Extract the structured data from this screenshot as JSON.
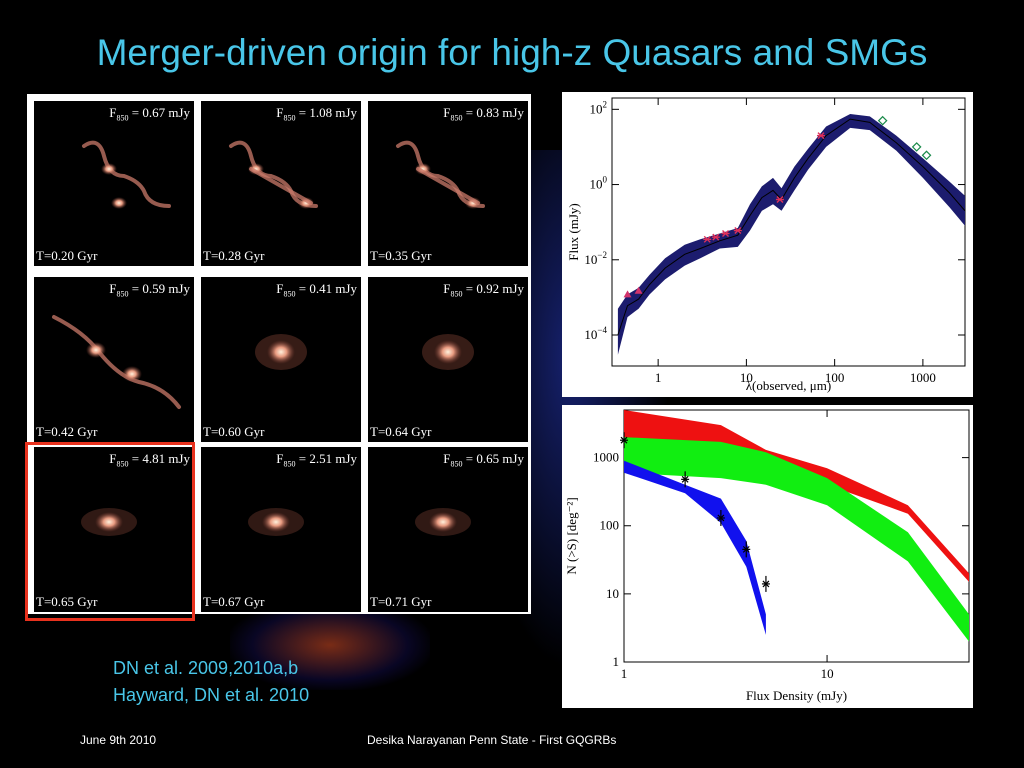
{
  "slide": {
    "title": "Merger-driven origin for high-z Quasars and SMGs",
    "references": [
      "DN et al. 2009,2010a,b",
      "Hayward, DN et al. 2010"
    ],
    "footer": {
      "date": "June 9th 2010",
      "center": "Desika Narayanan   Penn State - First GQGRBs"
    }
  },
  "simulation_panels": [
    {
      "flux": "= 0.67 mJy",
      "time": "T=0.20  Gyr",
      "stage": "separated"
    },
    {
      "flux": "= 1.08 mJy",
      "time": "T=0.28  Gyr",
      "stage": "separated"
    },
    {
      "flux": "= 0.83 mJy",
      "time": "T=0.35  Gyr",
      "stage": "separated"
    },
    {
      "flux": "= 0.59 mJy",
      "time": "T=0.42  Gyr",
      "stage": "approach"
    },
    {
      "flux": "= 0.41 mJy",
      "time": "T=0.60  Gyr",
      "stage": "merging"
    },
    {
      "flux": "= 0.92 mJy",
      "time": "T=0.64  Gyr",
      "stage": "merging"
    },
    {
      "flux": "= 4.81 mJy",
      "time": "T=0.65  Gyr",
      "stage": "coalesced"
    },
    {
      "flux": "= 2.51 mJy",
      "time": "T=0.67  Gyr",
      "stage": "coalesced"
    },
    {
      "flux": "= 0.65 mJy",
      "time": "T=0.71  Gyr",
      "stage": "coalesced"
    }
  ],
  "flux_symbol": "F",
  "flux_subscript": "850",
  "highlighted_panel": 6,
  "colors": {
    "title": "#49c6e8",
    "highlight": "#e8321e",
    "sed_band": "#1c1c6e",
    "red_band": "#ee1111",
    "green_band": "#11ee11",
    "blue_band": "#1111ee"
  },
  "chart_data": [
    {
      "type": "area",
      "xlabel": "λ(observed, μm)",
      "ylabel": "Flux (mJy)",
      "xscale": "log",
      "yscale": "log",
      "xlim": [
        0.3,
        3000
      ],
      "ylim": [
        1.5e-05,
        200
      ],
      "xticks": [
        {
          "v": 1,
          "label": "1"
        },
        {
          "v": 10,
          "label": "10"
        },
        {
          "v": 100,
          "label": "100"
        },
        {
          "v": 1000,
          "label": "1000"
        }
      ],
      "yticks": [
        {
          "v": 0.0001,
          "base": "10",
          "exp": "−4"
        },
        {
          "v": 0.01,
          "base": "10",
          "exp": "−2"
        },
        {
          "v": 1,
          "base": "10",
          "exp": "0"
        },
        {
          "v": 100,
          "base": "10",
          "exp": "2"
        }
      ],
      "model_band": [
        {
          "x": 0.35,
          "lo": 3e-05,
          "hi": 0.0005,
          "mid": 0.0001
        },
        {
          "x": 0.45,
          "lo": 0.0003,
          "hi": 0.0012,
          "mid": 0.0006
        },
        {
          "x": 0.6,
          "lo": 0.0005,
          "hi": 0.0018,
          "mid": 0.0009
        },
        {
          "x": 0.8,
          "lo": 0.0012,
          "hi": 0.004,
          "mid": 0.0022
        },
        {
          "x": 1.2,
          "lo": 0.003,
          "hi": 0.011,
          "mid": 0.006
        },
        {
          "x": 2,
          "lo": 0.007,
          "hi": 0.025,
          "mid": 0.014
        },
        {
          "x": 3,
          "lo": 0.011,
          "hi": 0.035,
          "mid": 0.02
        },
        {
          "x": 5,
          "lo": 0.02,
          "hi": 0.05,
          "mid": 0.032
        },
        {
          "x": 8,
          "lo": 0.022,
          "hi": 0.07,
          "mid": 0.045
        },
        {
          "x": 11,
          "lo": 0.06,
          "hi": 0.3,
          "mid": 0.15
        },
        {
          "x": 15,
          "lo": 0.2,
          "hi": 0.9,
          "mid": 0.45
        },
        {
          "x": 20,
          "lo": 0.3,
          "hi": 1.5,
          "mid": 0.7
        },
        {
          "x": 25,
          "lo": 0.2,
          "hi": 0.8,
          "mid": 0.4
        },
        {
          "x": 35,
          "lo": 0.7,
          "hi": 3,
          "mid": 1.5
        },
        {
          "x": 50,
          "lo": 2.5,
          "hi": 9,
          "mid": 5
        },
        {
          "x": 80,
          "lo": 10,
          "hi": 35,
          "mid": 20
        },
        {
          "x": 150,
          "lo": 32,
          "hi": 75,
          "mid": 55
        },
        {
          "x": 250,
          "lo": 28,
          "hi": 65,
          "mid": 45
        },
        {
          "x": 500,
          "lo": 8,
          "hi": 20,
          "mid": 13
        },
        {
          "x": 1000,
          "lo": 1.5,
          "hi": 5,
          "mid": 3
        },
        {
          "x": 2000,
          "lo": 0.25,
          "hi": 1.2,
          "mid": 0.6
        },
        {
          "x": 3000,
          "lo": 0.08,
          "hi": 0.5,
          "mid": 0.2
        }
      ],
      "observed": {
        "triangles": [
          {
            "x": 0.45,
            "y": 0.0012
          },
          {
            "x": 0.6,
            "y": 0.0015
          }
        ],
        "stars": [
          {
            "x": 3.6,
            "y": 0.035
          },
          {
            "x": 4.5,
            "y": 0.04
          },
          {
            "x": 5.8,
            "y": 0.05
          },
          {
            "x": 8,
            "y": 0.06
          },
          {
            "x": 24,
            "y": 0.4
          },
          {
            "x": 70,
            "y": 20
          }
        ],
        "diamonds": [
          {
            "x": 350,
            "y": 50
          },
          {
            "x": 850,
            "y": 10
          },
          {
            "x": 1100,
            "y": 6
          }
        ]
      }
    },
    {
      "type": "area",
      "xlabel": "Flux Density (mJy)",
      "ylabel": "N (>S) [deg⁻²]",
      "xscale": "log",
      "yscale": "log",
      "xlim": [
        1,
        50
      ],
      "ylim": [
        1,
        5000
      ],
      "xticks": [
        {
          "v": 1,
          "label": "1"
        },
        {
          "v": 10,
          "label": "10"
        }
      ],
      "yticks": [
        {
          "v": 1,
          "label": "1"
        },
        {
          "v": 10,
          "label": "10"
        },
        {
          "v": 100,
          "label": "100"
        },
        {
          "v": 1000,
          "label": "1000"
        }
      ],
      "bands": [
        {
          "color": "red",
          "x": [
            1,
            3,
            5,
            10,
            25,
            50
          ],
          "hi": [
            5000,
            3000,
            1300,
            700,
            200,
            20
          ],
          "lo": [
            1500,
            1200,
            800,
            400,
            150,
            15
          ]
        },
        {
          "color": "green",
          "x": [
            1,
            3,
            5,
            10,
            25,
            50
          ],
          "hi": [
            2000,
            1700,
            1200,
            500,
            80,
            5
          ],
          "lo": [
            600,
            500,
            400,
            200,
            30,
            2
          ]
        },
        {
          "color": "blue",
          "x": [
            1,
            2,
            3,
            4,
            5
          ],
          "hi": [
            900,
            400,
            250,
            60,
            5
          ],
          "lo": [
            600,
            300,
            110,
            25,
            2.5
          ]
        }
      ],
      "observed": [
        {
          "x": 1,
          "y": 1800
        },
        {
          "x": 2,
          "y": 480
        },
        {
          "x": 3,
          "y": 130
        },
        {
          "x": 4,
          "y": 45
        },
        {
          "x": 5,
          "y": 14
        }
      ]
    }
  ]
}
